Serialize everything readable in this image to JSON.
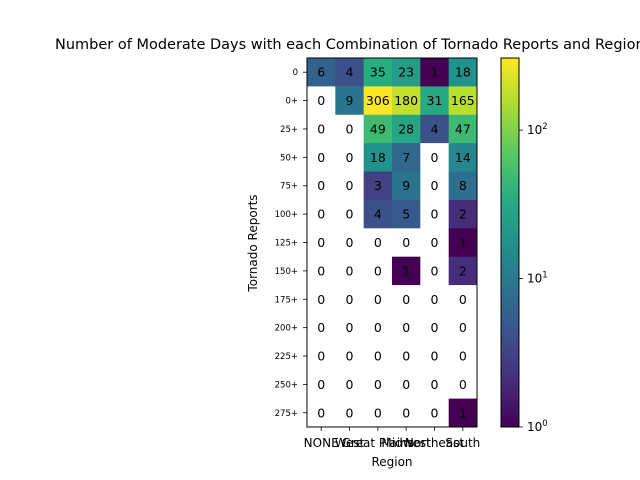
{
  "chart_data": {
    "type": "heatmap",
    "title": "Number of Moderate Days with each Combination of Tornado Reports and Region",
    "xlabel": "Region",
    "ylabel": "Tornado Reports",
    "x_categories": [
      "NONE",
      "West",
      "Great Plains",
      "Midwest",
      "Northeast",
      "South"
    ],
    "y_categories": [
      "0",
      "0+",
      "25+",
      "50+",
      "75+",
      "100+",
      "125+",
      "150+",
      "175+",
      "200+",
      "225+",
      "250+",
      "275+"
    ],
    "values": [
      [
        6,
        4,
        35,
        23,
        1,
        18
      ],
      [
        0,
        9,
        306,
        180,
        31,
        165
      ],
      [
        0,
        0,
        49,
        28,
        4,
        47
      ],
      [
        0,
        0,
        18,
        7,
        0,
        14
      ],
      [
        0,
        0,
        3,
        9,
        0,
        8
      ],
      [
        0,
        0,
        4,
        5,
        0,
        2
      ],
      [
        0,
        0,
        0,
        0,
        0,
        1
      ],
      [
        0,
        0,
        0,
        1,
        0,
        2
      ],
      [
        0,
        0,
        0,
        0,
        0,
        0
      ],
      [
        0,
        0,
        0,
        0,
        0,
        0
      ],
      [
        0,
        0,
        0,
        0,
        0,
        0
      ],
      [
        0,
        0,
        0,
        0,
        0,
        0
      ],
      [
        0,
        0,
        0,
        0,
        0,
        1
      ]
    ],
    "color_scale": "log",
    "colormap": "viridis",
    "zero_color": "#ffffff",
    "colorbar": {
      "range": [
        1,
        306
      ],
      "ticks": [
        {
          "value": 1,
          "base": "10",
          "exp": "0"
        },
        {
          "value": 10,
          "base": "10",
          "exp": "1"
        },
        {
          "value": 100,
          "base": "10",
          "exp": "2"
        }
      ]
    },
    "grid": false
  }
}
